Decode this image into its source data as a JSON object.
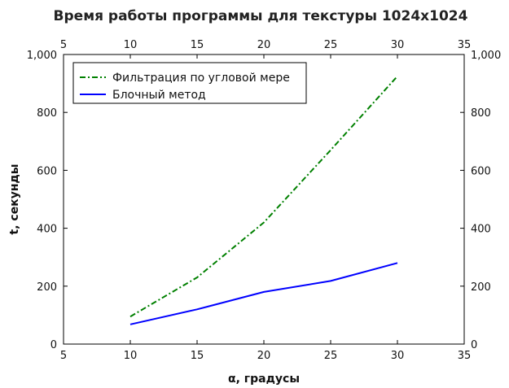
{
  "chart_data": {
    "type": "line",
    "title": "Время работы программы для текстуры 1024x1024",
    "xlabel": "α, градусы",
    "ylabel": "t, секунды",
    "xlim": [
      5,
      35
    ],
    "ylim": [
      0,
      1000
    ],
    "x_ticks": [
      5,
      10,
      15,
      20,
      25,
      30,
      35
    ],
    "y_ticks": [
      0,
      200,
      400,
      600,
      800,
      1000
    ],
    "y_tick_labels": [
      "0",
      "200",
      "400",
      "600",
      "800",
      "1,000"
    ],
    "x": [
      10,
      15,
      20,
      25,
      30
    ],
    "grid": false,
    "legend_position": "top-left",
    "series": [
      {
        "name": "Фильтрация по угловой мере",
        "values": [
          95,
          230,
          420,
          670,
          925
        ],
        "color": "#008000",
        "style": "dashdot"
      },
      {
        "name": "Блочный метод",
        "values": [
          68,
          120,
          180,
          218,
          280
        ],
        "color": "#0000ff",
        "style": "solid"
      }
    ]
  }
}
